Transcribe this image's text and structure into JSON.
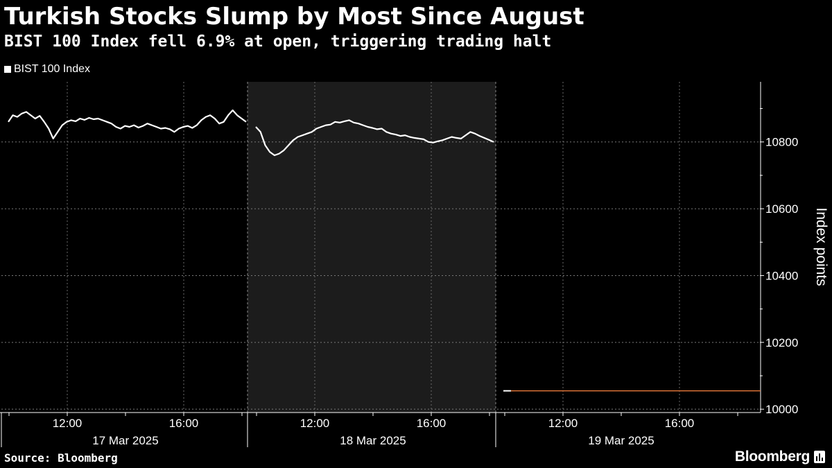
{
  "chart_data": {
    "type": "line",
    "title": "Turkish Stocks Slump by Most Since August",
    "subtitle": "BIST 100 Index fell 6.9% at open, triggering trading halt",
    "ylabel": "Index points",
    "ylim": [
      9990,
      10980
    ],
    "y_ticks": [
      10000,
      10200,
      10400,
      10600,
      10800
    ],
    "x_ticks": [
      "12:00",
      "16:00",
      "12:00",
      "16:00",
      "12:00",
      "16:00"
    ],
    "day_labels": [
      "17 Mar 2025",
      "18 Mar 2025",
      "19 Mar 2025"
    ],
    "grid": true,
    "legend_position": "top-left",
    "highlighted_day": "18 Mar 2025",
    "series": [
      {
        "name": "BIST 100 Index",
        "color": "#ffffff",
        "days": [
          [
            10860,
            10880,
            10875,
            10885,
            10890,
            10880,
            10870,
            10878,
            10860,
            10840,
            10810,
            10830,
            10850,
            10860,
            10865,
            10862,
            10870,
            10866,
            10872,
            10868,
            10870,
            10865,
            10860,
            10855,
            10845,
            10840,
            10848,
            10845,
            10850,
            10843,
            10848,
            10855,
            10850,
            10845,
            10840,
            10842,
            10838,
            10830,
            10840,
            10845,
            10848,
            10842,
            10850,
            10865,
            10875,
            10880,
            10870,
            10855,
            10860,
            10880,
            10895,
            10880,
            10870,
            10860
          ],
          [
            10845,
            10830,
            10790,
            10770,
            10760,
            10765,
            10775,
            10790,
            10805,
            10815,
            10820,
            10825,
            10830,
            10840,
            10845,
            10850,
            10852,
            10860,
            10858,
            10862,
            10865,
            10858,
            10855,
            10850,
            10845,
            10842,
            10838,
            10840,
            10830,
            10825,
            10822,
            10818,
            10820,
            10815,
            10812,
            10810,
            10808,
            10800,
            10798,
            10802,
            10805,
            10810,
            10815,
            10812,
            10810,
            10820,
            10830,
            10825,
            10818,
            10812,
            10806,
            10800
          ]
        ],
        "after_close_value": 10055
      },
      {
        "name": "",
        "color": "#e8793a",
        "days": [],
        "after_close_value": 10055
      }
    ]
  },
  "footer": {
    "source": "Source: Bloomberg",
    "brand": "Bloomberg"
  }
}
